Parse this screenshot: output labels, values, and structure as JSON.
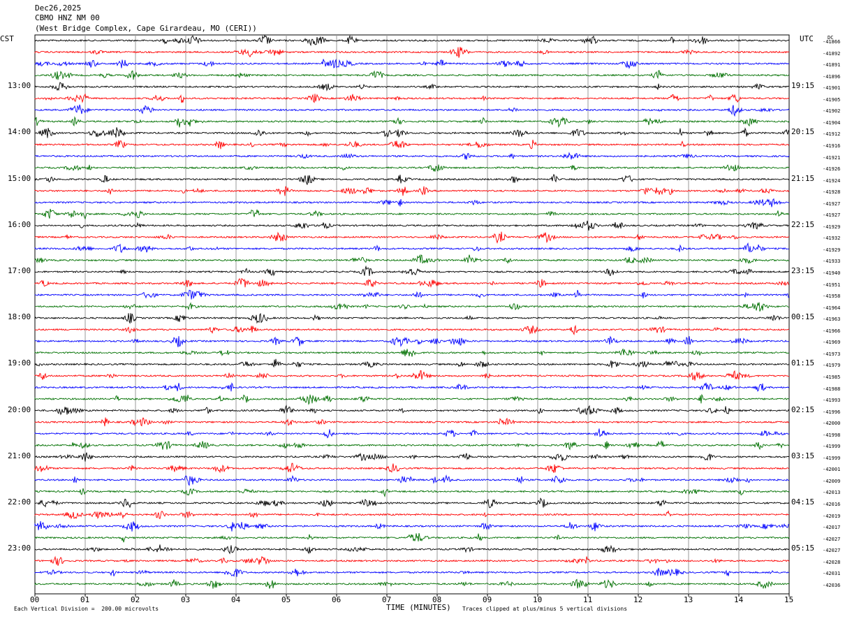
{
  "header": {
    "date": "Dec26,2025",
    "station": "CBMO HNZ NM 00",
    "location": "(West Bridge Complex, Cape Girardeau, MO (CERI))"
  },
  "left_axis_title": "CST",
  "right_axis_title": "UTC",
  "dc_title": "DC",
  "footer": {
    "note_left": "Each Vertical Division =  200.00 microvolts",
    "xlabel": "TIME (MINUTES)",
    "note_right": "Traces clipped at plus/minus 5 vertical divisions"
  },
  "chart_data": {
    "type": "line",
    "title": "",
    "xlabel": "TIME (MINUTES)",
    "xlim": [
      0,
      15
    ],
    "x_ticks": [
      "00",
      "01",
      "02",
      "03",
      "04",
      "05",
      "06",
      "07",
      "08",
      "09",
      "10",
      "11",
      "12",
      "13",
      "14",
      "15"
    ],
    "trace_count": 48,
    "traces_per_hour": 4,
    "trace_colors": [
      "#000000",
      "#ff0000",
      "#0000ff",
      "#007000"
    ],
    "left_hour_labels": [
      "13:00",
      "14:00",
      "15:00",
      "16:00",
      "17:00",
      "18:00",
      "19:00",
      "20:00",
      "21:00",
      "22:00",
      "23:00"
    ],
    "right_hour_labels": [
      "19:15",
      "20:15",
      "21:15",
      "22:15",
      "23:15",
      "00:15",
      "01:15",
      "02:15",
      "03:15",
      "04:15",
      "05:15"
    ],
    "hour_label_first_trace": 4,
    "dc_offsets": [
      "-41866",
      "-41892",
      "-41891",
      "-41896",
      "-41901",
      "-41905",
      "-41902",
      "-41904",
      "-41912",
      "-41916",
      "-41921",
      "-41926",
      "-41924",
      "-41928",
      "-41927",
      "-41927",
      "-41929",
      "-41932",
      "-41929",
      "-41933",
      "-41940",
      "-41951",
      "-41958",
      "-41964",
      "-41963",
      "-41966",
      "-41969",
      "-41973",
      "-41979",
      "-41985",
      "-41988",
      "-41993",
      "-41996",
      "-42000",
      "-41998",
      "-41999",
      "-41999",
      "-42001",
      "-42009",
      "-42013",
      "-42016",
      "-42019",
      "-42017",
      "-42027",
      "-42027",
      "-42028",
      "-42031",
      "-42036"
    ]
  }
}
